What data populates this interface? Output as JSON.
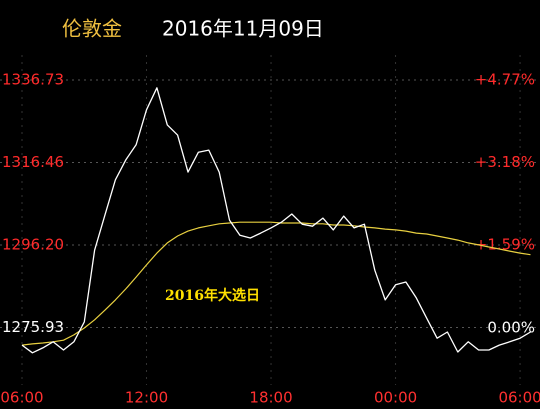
{
  "chart_data": {
    "type": "line",
    "title": "伦敦金",
    "subtitle": "2016年11月09日",
    "annotation": "2016年大选日",
    "x": [
      6,
      6.5,
      7,
      7.5,
      8,
      8.5,
      9,
      9.5,
      10,
      10.5,
      11,
      11.5,
      12,
      12.5,
      13,
      13.5,
      14,
      14.5,
      15,
      15.5,
      16,
      16.5,
      17,
      17.5,
      18,
      18.5,
      19,
      19.5,
      20,
      20.5,
      21,
      21.5,
      22,
      22.5,
      23,
      23.5,
      24,
      24.5,
      25,
      25.5,
      26,
      26.5,
      27,
      27.5,
      28,
      28.5,
      29,
      29.5,
      30,
      30.5
    ],
    "xlim": [
      4.94,
      30.96
    ],
    "xticks": [
      {
        "value": 6,
        "label": "06:00"
      },
      {
        "value": 12,
        "label": "12:00"
      },
      {
        "value": 18,
        "label": "18:00"
      },
      {
        "value": 24,
        "label": "00:00"
      },
      {
        "value": 30,
        "label": "06:00"
      }
    ],
    "ylim": [
      1261.79,
      1342.87
    ],
    "yticks": [
      1336.73,
      1316.46,
      {
        "value": 1296.2,
        "label": "1296.20"
      },
      1275.93
    ],
    "y2lim": [
      -1.1,
      5.25
    ],
    "y2ticks": [
      {
        "value": 4.77,
        "label": "+4.77%"
      },
      {
        "value": 3.18,
        "label": "+3.18%"
      },
      {
        "value": 1.59,
        "label": "+1.59%"
      },
      {
        "value": 0,
        "label": "0.00%"
      }
    ],
    "grid": true,
    "up_color": "#ff2b2b",
    "flat_color": "#ffffff",
    "title_color": "#f0c040",
    "annotation_color": "#ffe000",
    "axis_color": "#ff3030",
    "series": [
      {
        "color": "#ffffff",
        "values": [
          1271.6,
          1269.7,
          1270.9,
          1272.4,
          1270.4,
          1272.4,
          1277.3,
          1294.9,
          1303.6,
          1312.2,
          1317.1,
          1320.8,
          1329.4,
          1334.8,
          1325.7,
          1323.2,
          1314.1,
          1319.0,
          1319.5,
          1314.1,
          1302.3,
          1298.6,
          1297.9,
          1299.1,
          1300.4,
          1301.8,
          1303.8,
          1301.3,
          1300.8,
          1302.8,
          1299.9,
          1303.3,
          1300.4,
          1301.3,
          1290.0,
          1282.7,
          1286.4,
          1287.1,
          1283.2,
          1278.2,
          1273.3,
          1274.8,
          1269.9,
          1272.4,
          1270.4,
          1270.4,
          1271.6,
          1272.4,
          1273.3,
          1274.8
        ]
      },
      {
        "color": "#e8d040",
        "values": [
          1271.6,
          1271.9,
          1272.1,
          1272.4,
          1272.8,
          1274.1,
          1275.8,
          1277.8,
          1280.2,
          1282.7,
          1285.4,
          1288.3,
          1291.3,
          1294.2,
          1296.7,
          1298.4,
          1299.6,
          1300.4,
          1300.9,
          1301.4,
          1301.6,
          1301.8,
          1301.8,
          1301.8,
          1301.8,
          1301.6,
          1301.6,
          1301.6,
          1301.4,
          1301.4,
          1301.1,
          1301.1,
          1300.9,
          1300.6,
          1300.4,
          1300.1,
          1299.9,
          1299.6,
          1299.1,
          1298.9,
          1298.4,
          1297.9,
          1297.4,
          1296.7,
          1296.2,
          1295.7,
          1295.2,
          1294.7,
          1294.2,
          1293.8
        ]
      }
    ]
  }
}
